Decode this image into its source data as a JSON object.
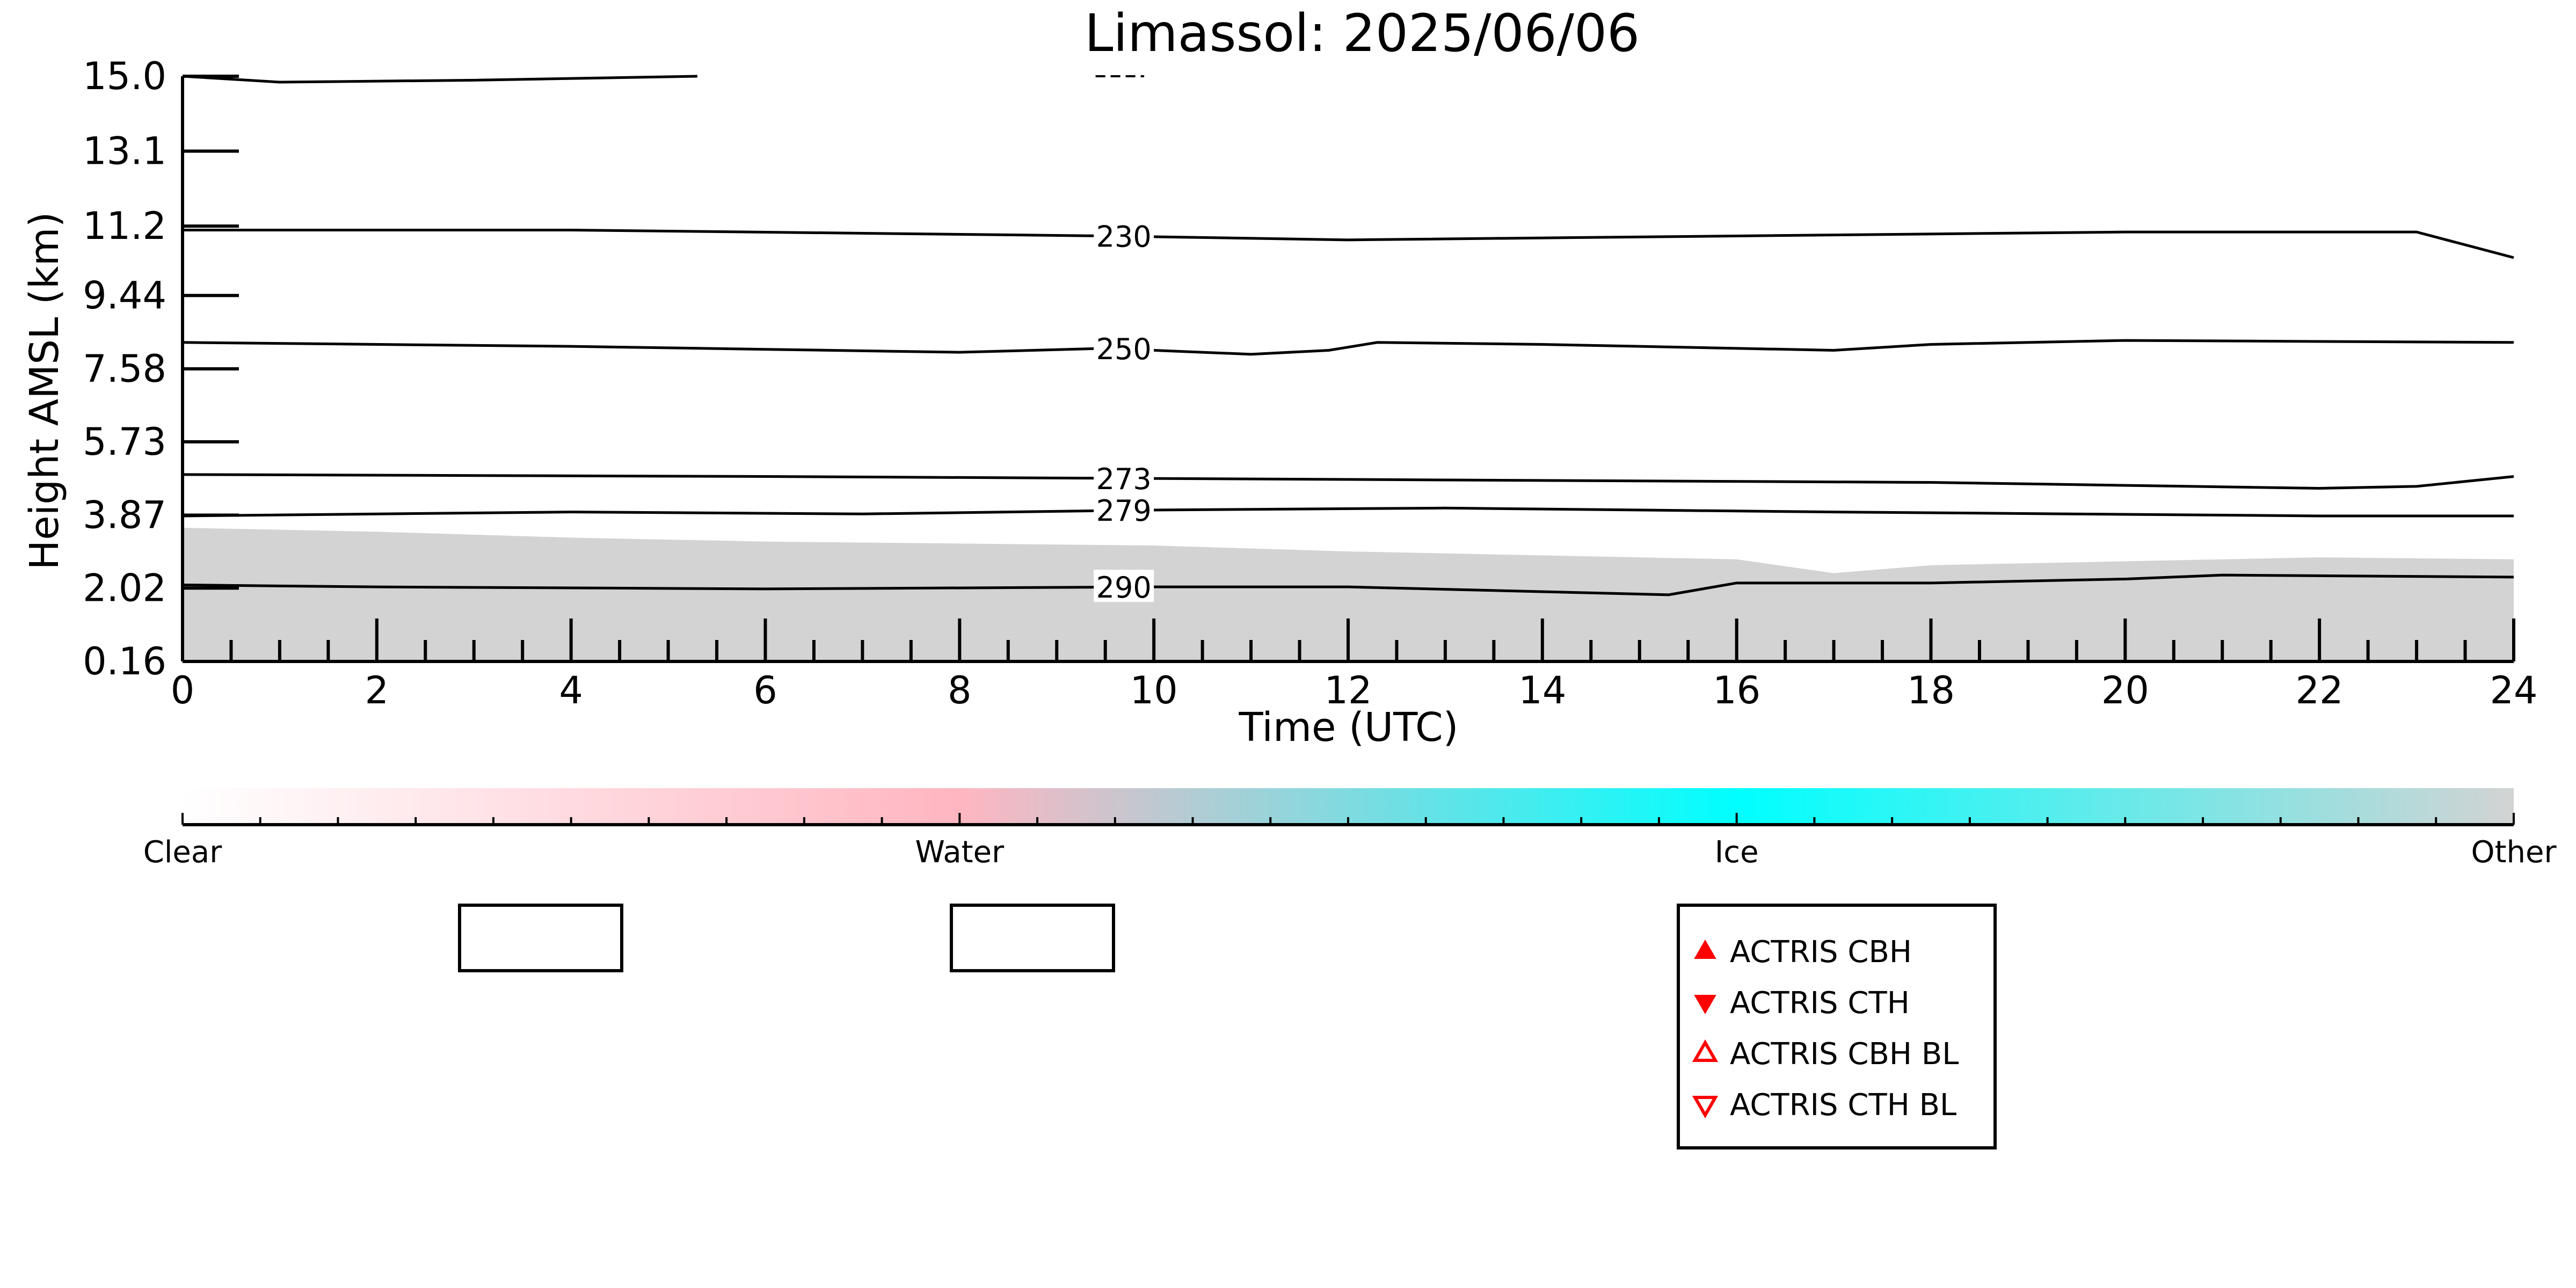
{
  "chart_data": {
    "type": "heatmap",
    "title": "Limassol: 2025/06/06",
    "xlabel": "Time (UTC)",
    "ylabel": "Height AMSL (km)",
    "xlim": [
      0,
      24
    ],
    "ylim": [
      0.16,
      15.0
    ],
    "x_ticks": [
      "0",
      "2",
      "4",
      "6",
      "8",
      "10",
      "12",
      "14",
      "16",
      "18",
      "20",
      "22",
      "24"
    ],
    "y_ticks": [
      "0.16",
      "2.02",
      "3.87",
      "5.73",
      "7.58",
      "9.44",
      "11.2",
      "13.1",
      "15.0"
    ],
    "cloud_classification": {
      "categories": [
        "Clear",
        "Water",
        "Ice",
        "Other"
      ],
      "colors": [
        "#ffffff",
        "#ffb6c1",
        "#00ffff",
        "#d3d3d3"
      ],
      "shaded_layer": {
        "color": "#d3d3d3",
        "x": [
          0,
          2,
          4,
          6,
          8,
          10,
          12,
          14,
          16,
          17,
          18,
          20,
          22,
          24
        ],
        "top_km": [
          3.55,
          3.45,
          3.3,
          3.2,
          3.15,
          3.1,
          2.95,
          2.85,
          2.75,
          2.4,
          2.6,
          2.7,
          2.8,
          2.75
        ],
        "bottom_km": 0.16
      }
    },
    "temperature_contours": [
      {
        "label": "230",
        "x": [
          0,
          4,
          9.5,
          12,
          16,
          20,
          23,
          24
        ],
        "y": [
          11.1,
          11.1,
          10.95,
          10.85,
          10.95,
          11.05,
          11.05,
          10.4
        ]
      },
      {
        "label": "250",
        "x": [
          0,
          4,
          8,
          9.5,
          11,
          11.8,
          12.3,
          14,
          17,
          18,
          20,
          24
        ],
        "y": [
          8.25,
          8.15,
          8.0,
          8.1,
          7.95,
          8.05,
          8.25,
          8.2,
          8.05,
          8.2,
          8.3,
          8.25
        ]
      },
      {
        "label": "273",
        "x": [
          0,
          6,
          10,
          14,
          18,
          22,
          23,
          24
        ],
        "y": [
          4.9,
          4.85,
          4.8,
          4.75,
          4.7,
          4.55,
          4.6,
          4.85
        ]
      },
      {
        "label": "279",
        "x": [
          0,
          4,
          7,
          10,
          13,
          17,
          22,
          24
        ],
        "y": [
          3.85,
          3.95,
          3.9,
          4.0,
          4.05,
          3.95,
          3.85,
          3.85
        ]
      },
      {
        "label": "290",
        "x": [
          0,
          2,
          6,
          10,
          12,
          15.3,
          16,
          18,
          20,
          21,
          24
        ],
        "y": [
          2.1,
          2.05,
          2.0,
          2.05,
          2.05,
          1.85,
          2.15,
          2.15,
          2.25,
          2.35,
          2.3
        ]
      }
    ],
    "top_contour_fragment": {
      "x": [
        0,
        1,
        3,
        5.3
      ],
      "y": [
        15.0,
        14.85,
        14.9,
        15.0
      ]
    },
    "legend": {
      "entries": [
        {
          "label": "ACTRIS CBH",
          "marker": "triangle-up-filled",
          "color": "#ff0000"
        },
        {
          "label": "ACTRIS CTH",
          "marker": "triangle-down-filled",
          "color": "#ff0000"
        },
        {
          "label": "ACTRIS CBH BL",
          "marker": "triangle-up-open",
          "color": "#ff0000"
        },
        {
          "label": "ACTRIS CTH BL",
          "marker": "triangle-down-open",
          "color": "#ff0000"
        }
      ],
      "placement": "bottom-right"
    },
    "empty_legend_boxes": 2,
    "grid": false
  }
}
